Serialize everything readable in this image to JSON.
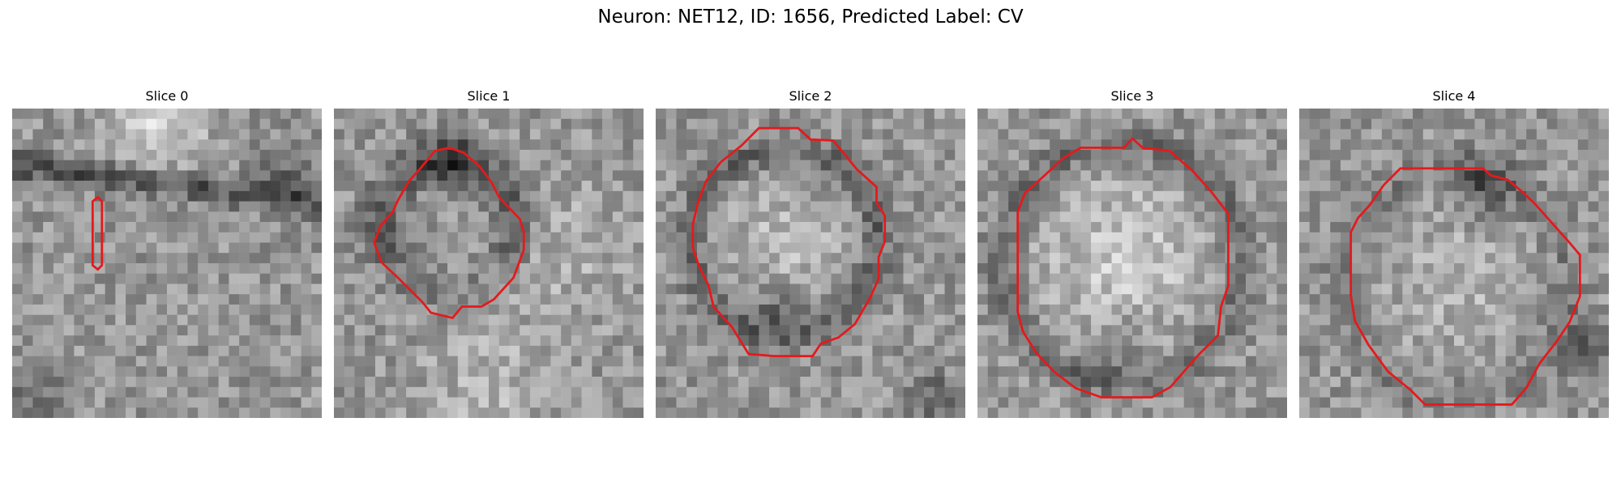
{
  "figure": {
    "title": "Neuron: NET12, ID: 1656, Predicted Label: CV"
  },
  "contour_color": "#e41a1c",
  "panels": [
    {
      "title": "Slice 0",
      "contour_icon": "thin-capsule-outline"
    },
    {
      "title": "Slice 1",
      "contour_icon": "octagon-outline"
    },
    {
      "title": "Slice 2",
      "contour_icon": "octagon-outline"
    },
    {
      "title": "Slice 3",
      "contour_icon": "octagon-outline"
    },
    {
      "title": "Slice 4",
      "contour_icon": "octagon-outline"
    }
  ]
}
